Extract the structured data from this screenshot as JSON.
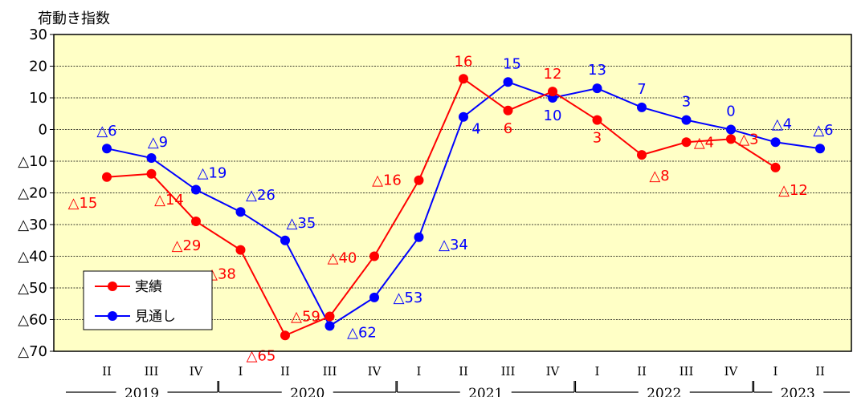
{
  "chart_data": {
    "type": "line",
    "ylabel": "荷動き指数",
    "ylim": [
      -70,
      30
    ],
    "yticks": [
      30,
      20,
      10,
      0,
      -10,
      -20,
      -30,
      -40,
      -50,
      -60,
      -70
    ],
    "ytick_labels": [
      "30",
      "20",
      "10",
      "0",
      "△10",
      "△20",
      "△30",
      "△40",
      "△50",
      "△60",
      "△70"
    ],
    "grid": true,
    "legend_position": "bottom-left",
    "categories": [
      "II",
      "III",
      "IV",
      "I",
      "II",
      "III",
      "IV",
      "I",
      "II",
      "III",
      "IV",
      "I",
      "II",
      "III",
      "IV",
      "I",
      "II"
    ],
    "year_groups": [
      {
        "label": "2019",
        "start": 0,
        "end": 2
      },
      {
        "label": "2020",
        "start": 3,
        "end": 6
      },
      {
        "label": "2021",
        "start": 7,
        "end": 10
      },
      {
        "label": "2022",
        "start": 11,
        "end": 14
      },
      {
        "label": "2023",
        "start": 15,
        "end": 16
      }
    ],
    "series": [
      {
        "name": "実績",
        "color": "#ff0000",
        "values": [
          -15,
          -14,
          -29,
          -38,
          -65,
          -59,
          -40,
          -16,
          16,
          6,
          12,
          3,
          -8,
          -4,
          -3,
          -12,
          null
        ],
        "labels": [
          "△15",
          "△14",
          "△29",
          "△38",
          "△65",
          "△59",
          "△40",
          "△16",
          "16",
          "6",
          "12",
          "3",
          "△8",
          "△4",
          "△3",
          "△12",
          ""
        ]
      },
      {
        "name": "見通し",
        "color": "#0000ff",
        "values": [
          -6,
          -9,
          -19,
          -26,
          -35,
          -62,
          -53,
          -34,
          4,
          15,
          10,
          13,
          7,
          3,
          0,
          -4,
          -6
        ],
        "labels": [
          "△6",
          "△9",
          "△19",
          "△26",
          "△35",
          "△62",
          "△53",
          "△34",
          "4",
          "15",
          "10",
          "13",
          "7",
          "3",
          "0",
          "△4",
          "△6"
        ]
      }
    ]
  }
}
